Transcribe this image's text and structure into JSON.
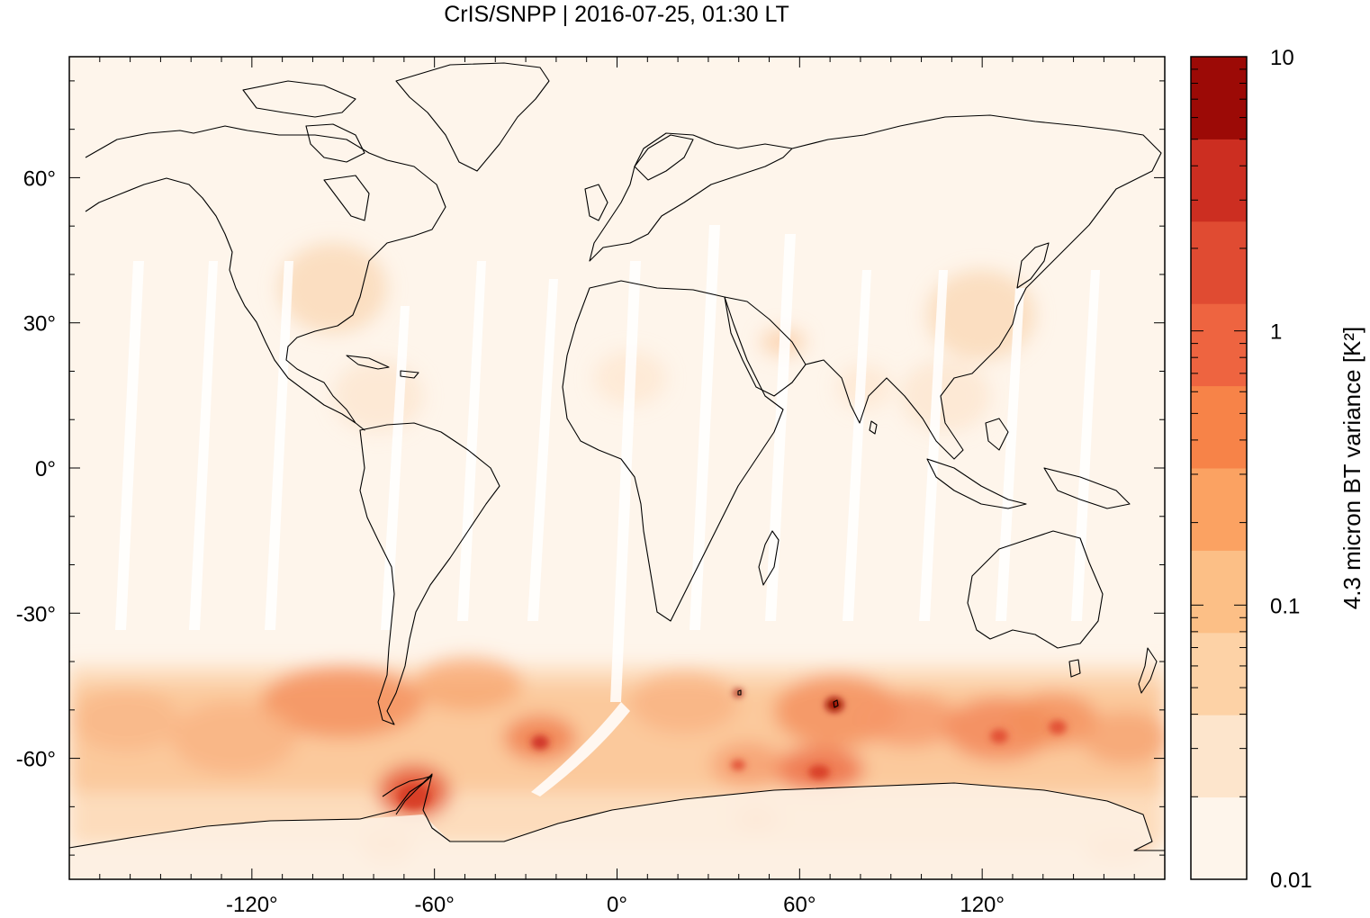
{
  "title": "CrIS/SNPP | 2016-07-25, 01:30 LT",
  "map": {
    "projection": "equirectangular",
    "lon_range": [
      -180,
      180
    ],
    "lat_range": [
      -85,
      85
    ],
    "x_ticks": [
      -120,
      -60,
      0,
      60,
      120
    ],
    "x_tick_labels": [
      "-120°",
      "-60°",
      "0°",
      "60°",
      "120°"
    ],
    "y_ticks": [
      60,
      30,
      0,
      -30,
      -60
    ],
    "y_tick_labels": [
      "60°",
      "30°",
      "0°",
      "-30°",
      "-60°"
    ],
    "background_color": "#fef5eb",
    "coastline_color": "#000000"
  },
  "colorbar": {
    "label": "4.3 micron BT variance [K²]",
    "scale": "log",
    "range": [
      0.01,
      10
    ],
    "tick_values": [
      10,
      1,
      0.1,
      0.01
    ],
    "tick_labels": [
      "10",
      "1",
      "0.1",
      "0.01"
    ],
    "colors": [
      "#fef5eb",
      "#fde5cc",
      "#fdd2a6",
      "#fcbf86",
      "#fba262",
      "#f78348",
      "#ee6440",
      "#e04b32",
      "#cc2e21",
      "#9c0a06"
    ]
  },
  "chart_data": {
    "type": "heatmap",
    "title": "CrIS/SNPP | 2016-07-25, 01:30 LT",
    "xlabel": "",
    "ylabel": "",
    "xlim": [
      -180,
      180
    ],
    "ylim": [
      -85,
      85
    ],
    "colorbar_label": "4.3 micron BT variance [K²]",
    "colorbar_scale": "log",
    "colorbar_range": [
      0.01,
      10
    ],
    "features": [
      {
        "lon": -88,
        "lat": -48,
        "value": 0.5
      },
      {
        "lon": -135,
        "lat": -48,
        "value": 0.25
      },
      {
        "lon": -60,
        "lat": -68,
        "value": 0.9
      },
      {
        "lon": -25,
        "lat": -56,
        "value": 0.6
      },
      {
        "lon": -40,
        "lat": -42,
        "value": 0.3
      },
      {
        "lon": 10,
        "lat": -45,
        "value": 0.25
      },
      {
        "lon": 72,
        "lat": -50,
        "value": 1.5
      },
      {
        "lon": 62,
        "lat": -63,
        "value": 0.7
      },
      {
        "lon": 38,
        "lat": -62,
        "value": 0.5
      },
      {
        "lon": 95,
        "lat": -52,
        "value": 0.4
      },
      {
        "lon": 120,
        "lat": -56,
        "value": 0.5
      },
      {
        "lon": 140,
        "lat": -53,
        "value": 0.6
      },
      {
        "lon": 160,
        "lat": -57,
        "value": 0.3
      },
      {
        "lon": -95,
        "lat": 40,
        "value": 0.08
      },
      {
        "lon": 118,
        "lat": 30,
        "value": 0.07
      },
      {
        "lon": 55,
        "lat": 27,
        "value": 0.06
      }
    ]
  }
}
